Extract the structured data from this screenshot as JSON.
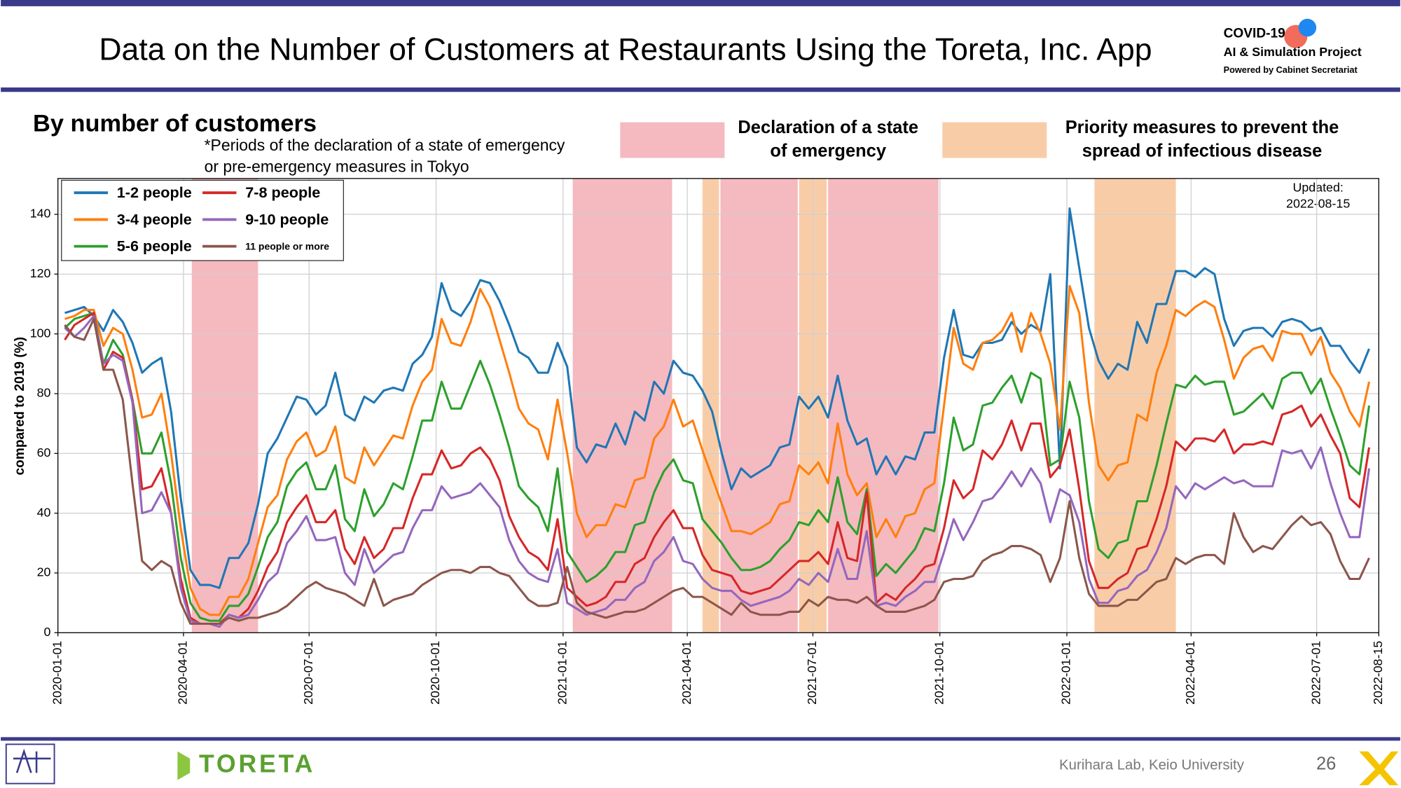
{
  "header": {
    "title": "Data on the Number of Customers at Restaurants Using the Toreta, Inc. App",
    "logo_lines": [
      "COVID-19",
      "AI & Simulation Project",
      "Powered by Cabinet Secretariat"
    ]
  },
  "footer": {
    "brand": "TORETA",
    "credit": "Kurihara Lab, Keio University",
    "page": "26"
  },
  "chart_data": {
    "type": "line",
    "subtitle": "By number of customers",
    "note_lines": [
      "*Periods of the declaration of a state of emergency",
      "or pre-emergency measures in Tokyo"
    ],
    "ylabel": "compared to 2019 (%)",
    "annotation_lines": [
      "Updated:",
      "2022-08-15"
    ],
    "period_legend": [
      {
        "label_lines": [
          "Declaration of a state",
          "of emergency"
        ],
        "color": "#f5b9c0"
      },
      {
        "label_lines": [
          "Priority measures to prevent the",
          "spread of infectious disease"
        ],
        "color": "#f9cca8"
      }
    ],
    "periods": [
      {
        "start": "2020-04-07",
        "end": "2020-05-25",
        "color": "#f5b9c0"
      },
      {
        "start": "2021-01-08",
        "end": "2021-03-21",
        "color": "#f5b9c0"
      },
      {
        "start": "2021-04-12",
        "end": "2021-04-24",
        "color": "#f9cca8"
      },
      {
        "start": "2021-04-25",
        "end": "2021-06-20",
        "color": "#f5b9c0"
      },
      {
        "start": "2021-06-21",
        "end": "2021-07-11",
        "color": "#f9cca8"
      },
      {
        "start": "2021-07-12",
        "end": "2021-09-30",
        "color": "#f5b9c0"
      },
      {
        "start": "2022-01-21",
        "end": "2022-03-21",
        "color": "#f9cca8"
      }
    ],
    "xlim": [
      "2020-01-01",
      "2022-08-15"
    ],
    "xticks": [
      "2020-01-01",
      "2020-04-01",
      "2020-07-01",
      "2020-10-01",
      "2021-01-01",
      "2021-04-01",
      "2021-07-01",
      "2021-10-01",
      "2022-01-01",
      "2022-04-01",
      "2022-07-01",
      "2022-08-15"
    ],
    "ylim": [
      0,
      152
    ],
    "yticks": [
      0,
      20,
      40,
      60,
      80,
      100,
      120,
      140
    ],
    "grid": true,
    "legend": "upper left",
    "x": [
      "2020-01-06",
      "2020-01-13",
      "2020-01-20",
      "2020-01-27",
      "2020-02-03",
      "2020-02-10",
      "2020-02-17",
      "2020-02-24",
      "2020-03-02",
      "2020-03-09",
      "2020-03-16",
      "2020-03-23",
      "2020-03-30",
      "2020-04-06",
      "2020-04-13",
      "2020-04-20",
      "2020-04-27",
      "2020-05-04",
      "2020-05-11",
      "2020-05-18",
      "2020-05-25",
      "2020-06-01",
      "2020-06-08",
      "2020-06-15",
      "2020-06-22",
      "2020-06-29",
      "2020-07-06",
      "2020-07-13",
      "2020-07-20",
      "2020-07-27",
      "2020-08-03",
      "2020-08-10",
      "2020-08-17",
      "2020-08-24",
      "2020-08-31",
      "2020-09-07",
      "2020-09-14",
      "2020-09-21",
      "2020-09-28",
      "2020-10-05",
      "2020-10-12",
      "2020-10-19",
      "2020-10-26",
      "2020-11-02",
      "2020-11-09",
      "2020-11-16",
      "2020-11-23",
      "2020-11-30",
      "2020-12-07",
      "2020-12-14",
      "2020-12-21",
      "2020-12-28",
      "2021-01-04",
      "2021-01-11",
      "2021-01-18",
      "2021-01-25",
      "2021-02-01",
      "2021-02-08",
      "2021-02-15",
      "2021-02-22",
      "2021-03-01",
      "2021-03-08",
      "2021-03-15",
      "2021-03-22",
      "2021-03-29",
      "2021-04-05",
      "2021-04-12",
      "2021-04-19",
      "2021-04-26",
      "2021-05-03",
      "2021-05-10",
      "2021-05-17",
      "2021-05-24",
      "2021-05-31",
      "2021-06-07",
      "2021-06-14",
      "2021-06-21",
      "2021-06-28",
      "2021-07-05",
      "2021-07-12",
      "2021-07-19",
      "2021-07-26",
      "2021-08-02",
      "2021-08-09",
      "2021-08-16",
      "2021-08-23",
      "2021-08-30",
      "2021-09-06",
      "2021-09-13",
      "2021-09-20",
      "2021-09-27",
      "2021-10-04",
      "2021-10-11",
      "2021-10-18",
      "2021-10-25",
      "2021-11-01",
      "2021-11-08",
      "2021-11-15",
      "2021-11-22",
      "2021-11-29",
      "2021-12-06",
      "2021-12-13",
      "2021-12-20",
      "2021-12-27",
      "2022-01-03",
      "2022-01-10",
      "2022-01-17",
      "2022-01-24",
      "2022-01-31",
      "2022-02-07",
      "2022-02-14",
      "2022-02-21",
      "2022-02-28",
      "2022-03-07",
      "2022-03-14",
      "2022-03-21",
      "2022-03-28",
      "2022-04-04",
      "2022-04-11",
      "2022-04-18",
      "2022-04-25",
      "2022-05-02",
      "2022-05-09",
      "2022-05-16",
      "2022-05-23",
      "2022-05-30",
      "2022-06-06",
      "2022-06-13",
      "2022-06-20",
      "2022-06-27",
      "2022-07-04",
      "2022-07-11",
      "2022-07-18",
      "2022-07-25",
      "2022-08-01",
      "2022-08-08"
    ],
    "series": [
      {
        "name": "1-2 people",
        "color": "#1f77b4",
        "values": [
          107,
          108,
          109,
          106,
          101,
          108,
          104,
          97,
          87,
          90,
          92,
          74,
          45,
          21,
          16,
          16,
          15,
          25,
          25,
          30,
          43,
          60,
          65,
          72,
          79,
          78,
          73,
          76,
          87,
          73,
          71,
          79,
          77,
          81,
          82,
          81,
          90,
          93,
          99,
          117,
          108,
          106,
          111,
          118,
          117,
          111,
          103,
          94,
          92,
          87,
          87,
          97,
          89,
          62,
          57,
          63,
          62,
          70,
          63,
          74,
          71,
          84,
          80,
          91,
          87,
          86,
          81,
          74,
          60,
          48,
          55,
          52,
          54,
          56,
          62,
          63,
          79,
          75,
          79,
          72,
          86,
          71,
          63,
          65,
          53,
          59,
          53,
          59,
          58,
          67,
          67,
          92,
          108,
          93,
          92,
          97,
          97,
          98,
          104,
          100,
          103,
          101,
          120,
          55,
          142,
          122,
          102,
          91,
          85,
          90,
          88,
          104,
          97,
          110,
          110,
          121,
          121,
          119,
          122,
          120,
          105,
          96,
          101,
          102,
          102,
          99,
          104,
          105,
          104,
          101,
          102,
          96,
          96,
          91,
          87,
          95
        ]
      },
      {
        "name": "3-4 people",
        "color": "#ff7f0e",
        "values": [
          105,
          106,
          108,
          108,
          96,
          102,
          100,
          88,
          72,
          73,
          80,
          60,
          35,
          15,
          8,
          6,
          6,
          12,
          12,
          18,
          30,
          42,
          46,
          58,
          64,
          67,
          59,
          61,
          69,
          52,
          50,
          62,
          56,
          61,
          66,
          65,
          76,
          84,
          88,
          105,
          97,
          96,
          104,
          115,
          109,
          98,
          87,
          75,
          70,
          68,
          58,
          78,
          60,
          40,
          32,
          36,
          36,
          43,
          42,
          51,
          52,
          65,
          69,
          78,
          69,
          71,
          61,
          52,
          43,
          34,
          34,
          33,
          35,
          37,
          43,
          44,
          56,
          53,
          57,
          50,
          70,
          53,
          46,
          50,
          32,
          38,
          32,
          39,
          40,
          48,
          50,
          76,
          102,
          90,
          88,
          97,
          98,
          101,
          107,
          94,
          107,
          100,
          90,
          68,
          116,
          107,
          77,
          56,
          51,
          56,
          57,
          73,
          71,
          87,
          96,
          108,
          106,
          109,
          111,
          109,
          98,
          85,
          92,
          95,
          96,
          91,
          101,
          100,
          100,
          93,
          99,
          87,
          82,
          74,
          69,
          84
        ]
      },
      {
        "name": "5-6 people",
        "color": "#2ca02c",
        "values": [
          102,
          105,
          106,
          107,
          90,
          98,
          93,
          78,
          60,
          60,
          67,
          50,
          25,
          10,
          5,
          4,
          4,
          9,
          9,
          13,
          22,
          32,
          37,
          49,
          54,
          57,
          48,
          48,
          56,
          38,
          34,
          48,
          39,
          43,
          50,
          48,
          59,
          71,
          71,
          84,
          75,
          75,
          83,
          91,
          83,
          73,
          62,
          49,
          45,
          42,
          34,
          55,
          27,
          22,
          17,
          19,
          22,
          27,
          27,
          36,
          37,
          47,
          54,
          58,
          51,
          50,
          38,
          34,
          30,
          25,
          21,
          21,
          22,
          24,
          28,
          31,
          37,
          36,
          41,
          37,
          52,
          37,
          33,
          48,
          19,
          23,
          20,
          24,
          28,
          35,
          34,
          50,
          72,
          61,
          63,
          76,
          77,
          82,
          86,
          77,
          87,
          85,
          56,
          58,
          84,
          72,
          44,
          28,
          25,
          30,
          31,
          44,
          44,
          56,
          70,
          83,
          82,
          86,
          83,
          84,
          84,
          73,
          74,
          77,
          80,
          75,
          85,
          87,
          87,
          80,
          85,
          75,
          66,
          56,
          53,
          76
        ]
      },
      {
        "name": "7-8 people",
        "color": "#d62728",
        "values": [
          98,
          103,
          105,
          107,
          88,
          94,
          92,
          78,
          48,
          49,
          55,
          40,
          18,
          5,
          3,
          3,
          3,
          6,
          5,
          8,
          14,
          22,
          27,
          37,
          42,
          46,
          37,
          37,
          41,
          28,
          23,
          32,
          25,
          28,
          35,
          35,
          45,
          53,
          53,
          61,
          55,
          56,
          60,
          62,
          58,
          51,
          39,
          32,
          27,
          25,
          21,
          38,
          15,
          12,
          9,
          10,
          12,
          17,
          17,
          23,
          25,
          32,
          37,
          41,
          35,
          35,
          26,
          21,
          20,
          19,
          14,
          13,
          14,
          15,
          18,
          21,
          24,
          24,
          27,
          23,
          37,
          25,
          24,
          47,
          10,
          13,
          11,
          15,
          18,
          22,
          23,
          35,
          51,
          45,
          48,
          61,
          58,
          63,
          71,
          61,
          70,
          70,
          52,
          56,
          68,
          48,
          24,
          15,
          15,
          18,
          20,
          28,
          29,
          38,
          49,
          64,
          61,
          65,
          65,
          64,
          68,
          60,
          63,
          63,
          64,
          63,
          73,
          74,
          76,
          69,
          73,
          66,
          60,
          45,
          42,
          62
        ]
      },
      {
        "name": "9-10 people",
        "color": "#9467bd",
        "values": [
          102,
          99,
          102,
          106,
          90,
          93,
          91,
          77,
          40,
          41,
          47,
          40,
          15,
          4,
          3,
          3,
          2,
          6,
          5,
          6,
          11,
          17,
          20,
          30,
          34,
          39,
          31,
          31,
          32,
          20,
          16,
          28,
          20,
          23,
          26,
          27,
          35,
          41,
          41,
          49,
          45,
          46,
          47,
          50,
          46,
          42,
          31,
          24,
          20,
          18,
          17,
          28,
          10,
          8,
          6,
          7,
          8,
          11,
          11,
          15,
          17,
          24,
          27,
          32,
          24,
          23,
          18,
          15,
          14,
          14,
          11,
          9,
          10,
          11,
          12,
          14,
          18,
          16,
          20,
          17,
          28,
          18,
          18,
          34,
          9,
          10,
          9,
          12,
          14,
          17,
          17,
          27,
          38,
          31,
          37,
          44,
          45,
          49,
          54,
          49,
          55,
          50,
          37,
          48,
          46,
          37,
          18,
          10,
          10,
          14,
          15,
          19,
          21,
          27,
          35,
          49,
          45,
          50,
          48,
          50,
          52,
          50,
          51,
          49,
          49,
          49,
          61,
          60,
          61,
          55,
          62,
          50,
          40,
          32,
          32,
          55
        ]
      },
      {
        "name": "11 people or more",
        "color": "#8c564b",
        "values": [
          103,
          99,
          98,
          105,
          88,
          88,
          78,
          50,
          24,
          21,
          24,
          22,
          10,
          3,
          3,
          3,
          3,
          5,
          4,
          5,
          5,
          6,
          7,
          9,
          12,
          15,
          17,
          15,
          14,
          13,
          11,
          9,
          18,
          9,
          11,
          12,
          13,
          16,
          18,
          20,
          21,
          21,
          20,
          22,
          22,
          20,
          19,
          15,
          11,
          9,
          9,
          10,
          22,
          10,
          7,
          6,
          5,
          6,
          7,
          7,
          8,
          10,
          12,
          14,
          15,
          12,
          12,
          10,
          8,
          6,
          10,
          7,
          6,
          6,
          6,
          7,
          7,
          11,
          9,
          12,
          11,
          11,
          10,
          12,
          9,
          7,
          7,
          7,
          8,
          9,
          11,
          17,
          18,
          18,
          19,
          24,
          26,
          27,
          29,
          29,
          28,
          26,
          17,
          25,
          44,
          25,
          13,
          9,
          9,
          9,
          11,
          11,
          14,
          17,
          18,
          25,
          23,
          25,
          26,
          26,
          23,
          40,
          32,
          27,
          29,
          28,
          32,
          36,
          39,
          36,
          37,
          33,
          24,
          18,
          18,
          25
        ]
      }
    ]
  }
}
